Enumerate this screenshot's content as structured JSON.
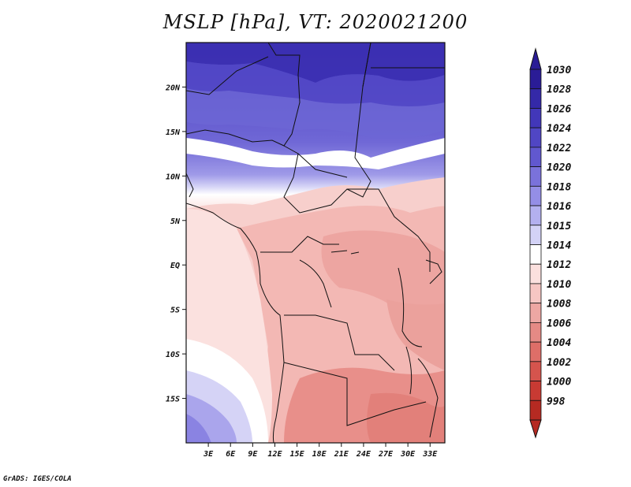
{
  "title": "MSLP [hPa], VT: 2020021200",
  "credit": "GrADS: IGES/COLA",
  "map": {
    "lon_range": [
      0,
      35
    ],
    "lat_range": [
      -20,
      25
    ],
    "lat_ticks": [
      "20N",
      "15N",
      "10N",
      "5N",
      "EQ",
      "5S",
      "10S",
      "15S"
    ],
    "lat_values": [
      20,
      15,
      10,
      5,
      0,
      -5,
      -10,
      -15
    ],
    "lon_ticks": [
      "3E",
      "6E",
      "9E",
      "12E",
      "15E",
      "18E",
      "21E",
      "24E",
      "27E",
      "30E",
      "33E"
    ],
    "lon_values": [
      3,
      6,
      9,
      12,
      15,
      18,
      21,
      24,
      27,
      30,
      33
    ]
  },
  "colorbar": {
    "labels": [
      "1030",
      "1028",
      "1026",
      "1024",
      "1022",
      "1020",
      "1018",
      "1016",
      "1015",
      "1014",
      "1012",
      "1010",
      "1008",
      "1006",
      "1004",
      "1002",
      "1000",
      "998"
    ],
    "colors": [
      "#2a1c96",
      "#3429a8",
      "#4237b9",
      "#5046c4",
      "#6158cf",
      "#7a72db",
      "#948ee6",
      "#b3b0ef",
      "#d3d2f6",
      "#ffffff",
      "#fbe0de",
      "#f6c6c3",
      "#eda7a3",
      "#e58a85",
      "#de6e68",
      "#d5544d",
      "#c83a33",
      "#b52a22"
    ]
  }
}
